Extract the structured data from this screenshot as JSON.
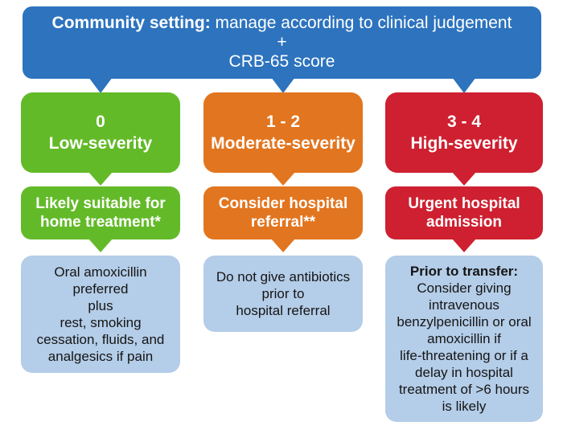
{
  "banner": {
    "bold_text": "Community setting:",
    "regular_text": " manage according to clinical judgement",
    "plus_line": "+",
    "score_line": "CRB-65 score",
    "bg_color": "#2d73be",
    "text_color": "#ffffff"
  },
  "detail_bg_color": "#b4cde8",
  "columns": [
    {
      "name": "low-severity",
      "color": "#63ba29",
      "score": "0",
      "severity": "Low-severity",
      "action": "Likely suitable for\nhome treatment*",
      "detail": "Oral amoxicillin\npreferred\nplus\nrest, smoking\ncessation, fluids, and\nanalgesics if pain"
    },
    {
      "name": "moderate-severity",
      "color": "#e2751f",
      "score": "1 - 2",
      "severity": "Moderate-severity",
      "action": "Consider hospital\nreferral**",
      "detail": "Do not give antibiotics\nprior to\nhospital referral"
    },
    {
      "name": "high-severity",
      "color": "#ce2030",
      "score": "3 - 4",
      "severity": "High-severity",
      "action": "Urgent hospital\nadmission",
      "detail_title": "Prior to transfer:",
      "detail": "Consider giving\nintravenous\nbenzylpenicillin or oral\namoxicillin if\nlife-threatening or if a\ndelay in hospital\ntreatment of >6 hours\nis likely"
    }
  ]
}
